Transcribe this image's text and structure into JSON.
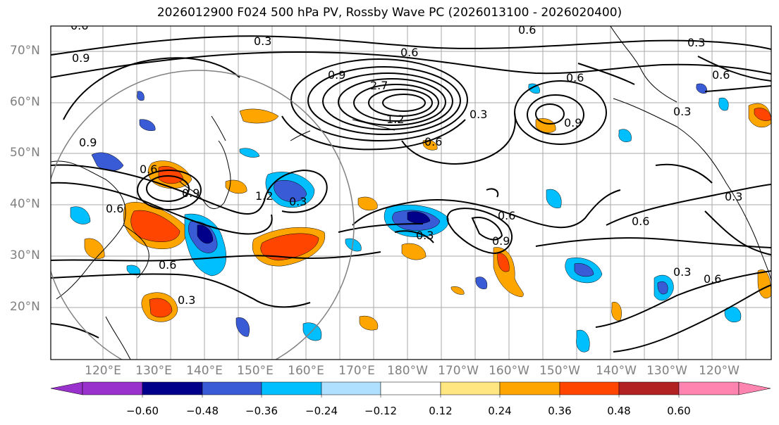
{
  "title": "2026012900 F024 500 hPa PV, Rossby Wave PC (2026013100 - 2026020400)",
  "lat_labels": [
    "70°N",
    "60°N",
    "50°N",
    "40°N",
    "30°N",
    "20°N"
  ],
  "lon_labels": [
    "120°E",
    "130°E",
    "140°E",
    "150°E",
    "160°E",
    "170°E",
    "180°W",
    "170°W",
    "160°W",
    "150°W",
    "140°W",
    "130°W",
    "120°W"
  ],
  "contour_labels": [
    "0.6",
    "0.3",
    "0.9",
    "0.6",
    "0.3",
    "0.6",
    "1.2",
    "0.9",
    "2.7",
    "0.3",
    "0.6",
    "0.9",
    "0.6",
    "0.3",
    "0.6",
    "0.9",
    "0.6",
    "0.6",
    "0.3",
    "0.6",
    "0.9",
    "0.6",
    "0.3",
    "0.6",
    "0.3",
    "0.6",
    "0.9",
    "0.6",
    "0.3"
  ],
  "colorbar": {
    "ticks": [
      "−0.60",
      "−0.48",
      "−0.36",
      "−0.24",
      "−0.12",
      "0.12",
      "0.24",
      "0.36",
      "0.48",
      "0.60"
    ],
    "colors": [
      "#9932cc",
      "#00008b",
      "#3a5bd6",
      "#00bfff",
      "#b0e0ff",
      "#ffffff",
      "#ffe680",
      "#ffa500",
      "#ff4500",
      "#b22222",
      "#ff85b0"
    ]
  }
}
